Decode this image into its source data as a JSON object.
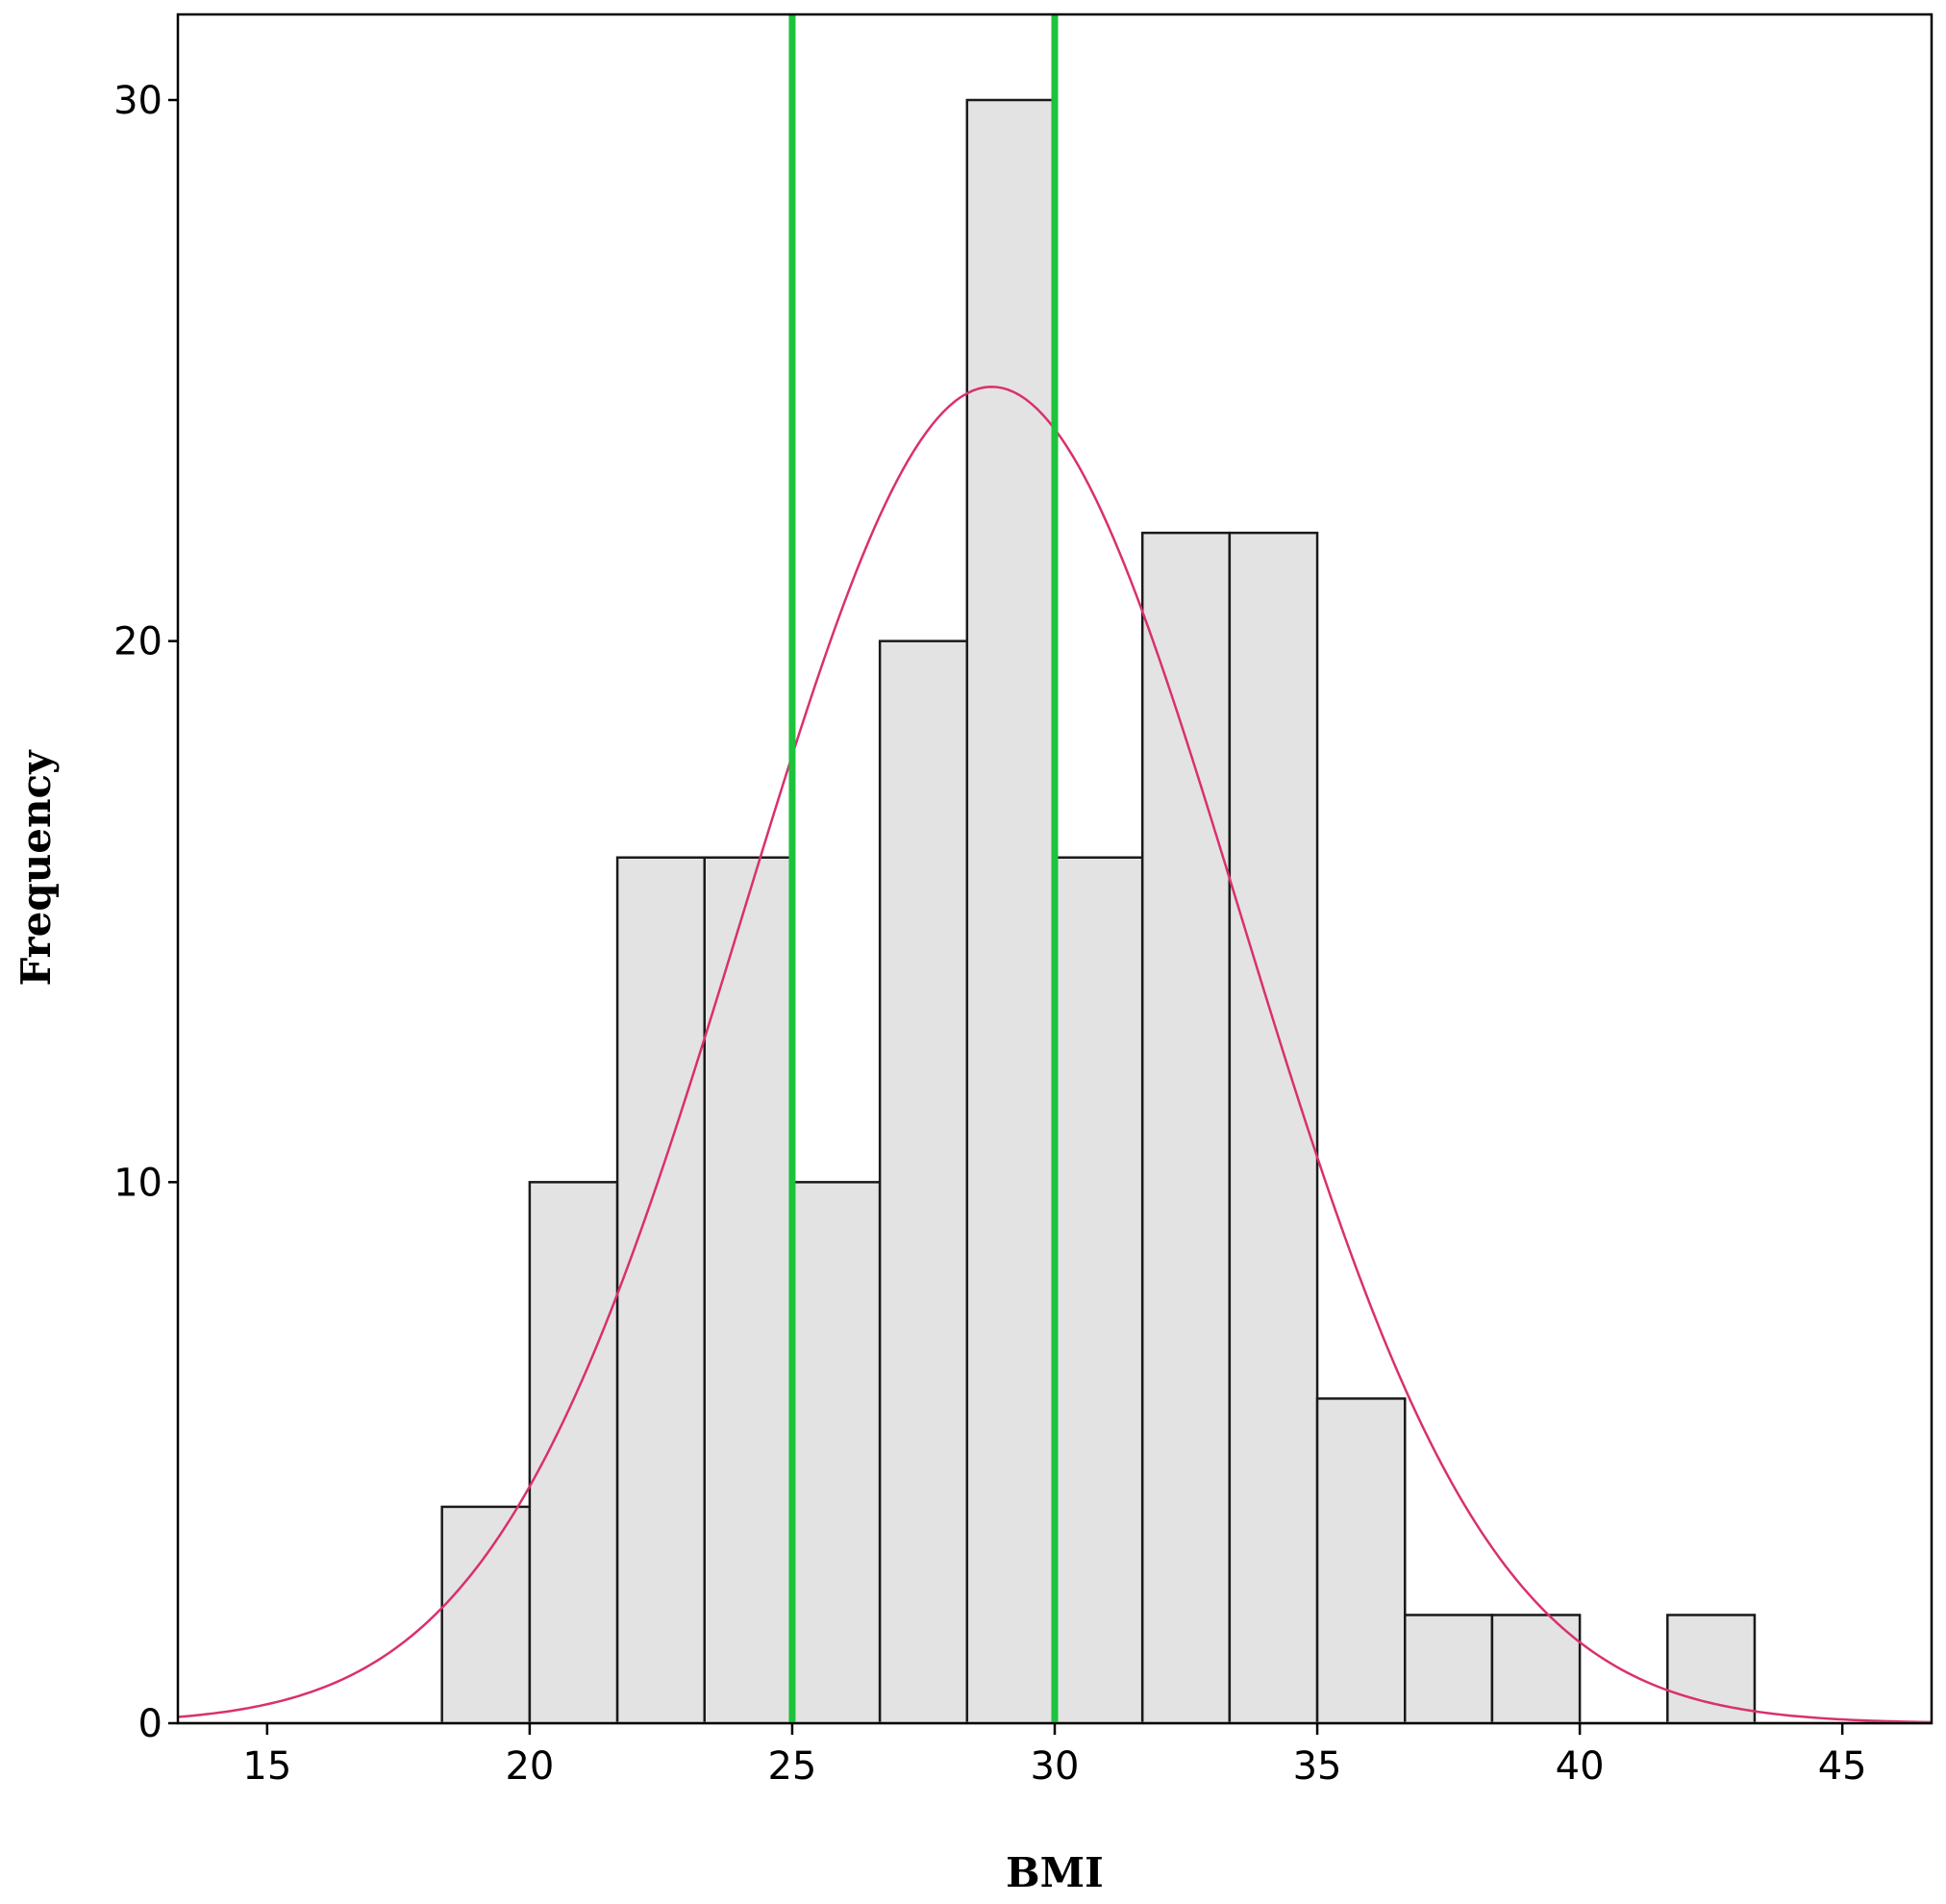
{
  "chart_data": {
    "type": "bar",
    "title": "",
    "xlabel": "BMI",
    "ylabel": "Frequency",
    "xlim": [
      13.3,
      46.7
    ],
    "ylim": [
      0,
      31.6
    ],
    "x_ticks": [
      15,
      20,
      25,
      30,
      35,
      40,
      45
    ],
    "y_ticks": [
      0,
      10,
      20,
      30
    ],
    "grid": false,
    "legend": "none",
    "bins": [
      {
        "start": 18.33,
        "end": 20.0,
        "count": 4
      },
      {
        "start": 20.0,
        "end": 21.67,
        "count": 10
      },
      {
        "start": 21.67,
        "end": 23.33,
        "count": 16
      },
      {
        "start": 23.33,
        "end": 25.0,
        "count": 16
      },
      {
        "start": 25.0,
        "end": 26.67,
        "count": 10
      },
      {
        "start": 26.67,
        "end": 28.33,
        "count": 20
      },
      {
        "start": 28.33,
        "end": 30.0,
        "count": 30
      },
      {
        "start": 30.0,
        "end": 31.67,
        "count": 16
      },
      {
        "start": 31.67,
        "end": 33.33,
        "count": 22
      },
      {
        "start": 33.33,
        "end": 35.0,
        "count": 22
      },
      {
        "start": 35.0,
        "end": 36.67,
        "count": 6
      },
      {
        "start": 36.67,
        "end": 38.33,
        "count": 2
      },
      {
        "start": 38.33,
        "end": 40.0,
        "count": 2
      },
      {
        "start": 41.67,
        "end": 43.33,
        "count": 2
      }
    ],
    "normal_curve": {
      "mean": 28.8,
      "sd": 4.73,
      "peak": 24.7
    },
    "reference_lines": [
      25,
      30
    ],
    "colors": {
      "bar_fill": "#e3e3e3",
      "bar_stroke": "#1a1a1a",
      "curve": "#d9306f",
      "reference_line": "#1ec23c",
      "axis": "#000000"
    }
  }
}
